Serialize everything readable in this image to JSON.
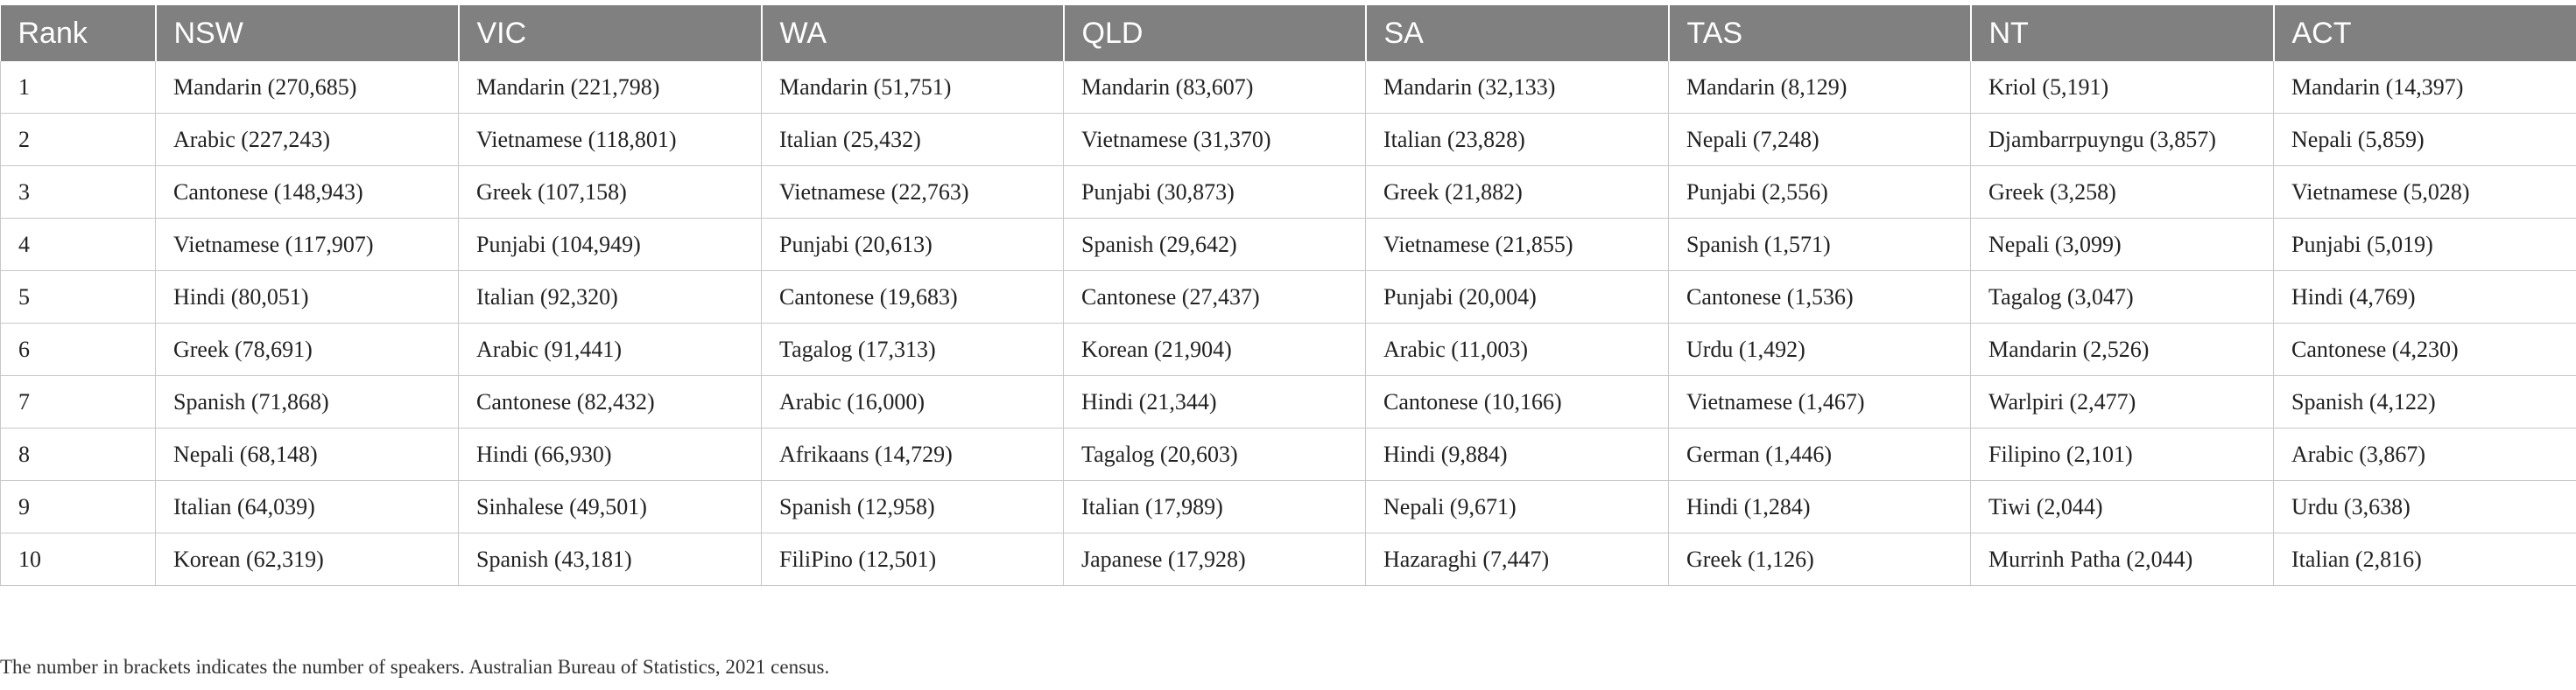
{
  "table": {
    "headers": [
      "Rank",
      "NSW",
      "VIC",
      "WA",
      "QLD",
      "SA",
      "TAS",
      "NT",
      "ACT"
    ],
    "rows": [
      [
        "1",
        "Mandarin (270,685)",
        "Mandarin (221,798)",
        "Mandarin (51,751)",
        "Mandarin (83,607)",
        "Mandarin (32,133)",
        "Mandarin (8,129)",
        "Kriol (5,191)",
        "Mandarin (14,397)"
      ],
      [
        "2",
        "Arabic (227,243)",
        "Vietnamese (118,801)",
        "Italian (25,432)",
        "Vietnamese (31,370)",
        "Italian (23,828)",
        "Nepali (7,248)",
        "Djambarrpuyngu (3,857)",
        "Nepali (5,859)"
      ],
      [
        "3",
        "Cantonese (148,943)",
        "Greek (107,158)",
        "Vietnamese (22,763)",
        "Punjabi (30,873)",
        "Greek (21,882)",
        "Punjabi (2,556)",
        "Greek (3,258)",
        "Vietnamese (5,028)"
      ],
      [
        "4",
        "Vietnamese (117,907)",
        "Punjabi (104,949)",
        "Punjabi (20,613)",
        "Spanish (29,642)",
        "Vietnamese (21,855)",
        "Spanish (1,571)",
        "Nepali (3,099)",
        "Punjabi (5,019)"
      ],
      [
        "5",
        "Hindi (80,051)",
        "Italian (92,320)",
        "Cantonese (19,683)",
        "Cantonese (27,437)",
        "Punjabi (20,004)",
        "Cantonese (1,536)",
        "Tagalog (3,047)",
        "Hindi (4,769)"
      ],
      [
        "6",
        "Greek (78,691)",
        "Arabic (91,441)",
        "Tagalog (17,313)",
        "Korean (21,904)",
        "Arabic (11,003)",
        "Urdu (1,492)",
        "Mandarin (2,526)",
        "Cantonese (4,230)"
      ],
      [
        "7",
        "Spanish (71,868)",
        "Cantonese (82,432)",
        "Arabic (16,000)",
        "Hindi (21,344)",
        "Cantonese (10,166)",
        "Vietnamese (1,467)",
        "Warlpiri (2,477)",
        "Spanish (4,122)"
      ],
      [
        "8",
        "Nepali (68,148)",
        "Hindi (66,930)",
        "Afrikaans (14,729)",
        "Tagalog (20,603)",
        "Hindi (9,884)",
        "German (1,446)",
        "Filipino (2,101)",
        "Arabic (3,867)"
      ],
      [
        "9",
        "Italian (64,039)",
        "Sinhalese (49,501)",
        "Spanish (12,958)",
        "Italian (17,989)",
        "Nepali (9,671)",
        "Hindi (1,284)",
        "Tiwi (2,044)",
        "Urdu (3,638)"
      ],
      [
        "10",
        "Korean (62,319)",
        "Spanish (43,181)",
        "FiliPino (12,501)",
        "Japanese (17,928)",
        "Hazaraghi (7,447)",
        "Greek (1,126)",
        "Murrinh Patha (2,044)",
        "Italian (2,816)"
      ]
    ]
  },
  "footnote": "The number in brackets indicates the number of speakers. Australian Bureau of Statistics, 2021 census."
}
